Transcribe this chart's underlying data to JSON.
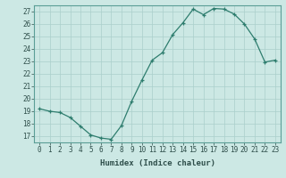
{
  "x": [
    0,
    1,
    2,
    3,
    4,
    5,
    6,
    7,
    8,
    9,
    10,
    11,
    12,
    13,
    14,
    15,
    16,
    17,
    18,
    19,
    20,
    21,
    22,
    23
  ],
  "y": [
    19.2,
    19.0,
    18.9,
    18.5,
    17.8,
    17.1,
    16.85,
    16.75,
    17.85,
    19.8,
    21.5,
    23.1,
    23.7,
    25.15,
    26.1,
    27.2,
    26.75,
    27.25,
    27.2,
    26.8,
    26.0,
    24.8,
    22.95,
    23.1
  ],
  "line_color": "#2e7d6e",
  "marker": "+",
  "bg_color": "#cce8e4",
  "grid_color": "#aacfcb",
  "xlabel": "Humidex (Indice chaleur)",
  "ylim": [
    16.5,
    27.5
  ],
  "yticks": [
    17,
    18,
    19,
    20,
    21,
    22,
    23,
    24,
    25,
    26,
    27
  ],
  "xticks": [
    0,
    1,
    2,
    3,
    4,
    5,
    6,
    7,
    8,
    9,
    10,
    11,
    12,
    13,
    14,
    15,
    16,
    17,
    18,
    19,
    20,
    21,
    22,
    23
  ],
  "label_fontsize": 6.5,
  "tick_fontsize": 5.5,
  "spine_color": "#5a9e96",
  "tick_color": "#2e4e4a"
}
